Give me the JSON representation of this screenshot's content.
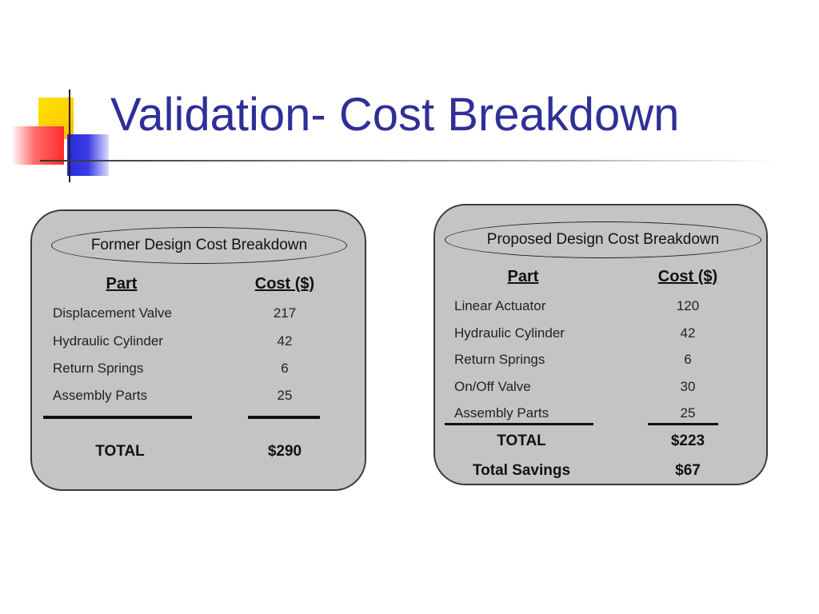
{
  "slide": {
    "title": "Validation- Cost Breakdown"
  },
  "former": {
    "heading": "Former Design Cost Breakdown",
    "col_part": "Part",
    "col_cost": "Cost ($)",
    "rows": [
      {
        "part": "Displacement Valve",
        "cost": "217"
      },
      {
        "part": "Hydraulic Cylinder",
        "cost": "42"
      },
      {
        "part": "Return Springs",
        "cost": "6"
      },
      {
        "part": "Assembly Parts",
        "cost": "25"
      }
    ],
    "total_label": "TOTAL",
    "total_value": "$290"
  },
  "proposed": {
    "heading": "Proposed Design Cost Breakdown",
    "col_part": "Part",
    "col_cost": "Cost ($)",
    "rows": [
      {
        "part": "Linear Actuator",
        "cost": "120"
      },
      {
        "part": "Hydraulic Cylinder",
        "cost": "42"
      },
      {
        "part": "Return Springs",
        "cost": "6"
      },
      {
        "part": "On/Off Valve",
        "cost": "30"
      },
      {
        "part": "Assembly Parts",
        "cost": "25"
      }
    ],
    "total_label": "TOTAL",
    "total_value": "$223",
    "savings_label": "Total Savings",
    "savings_value": "$67"
  }
}
